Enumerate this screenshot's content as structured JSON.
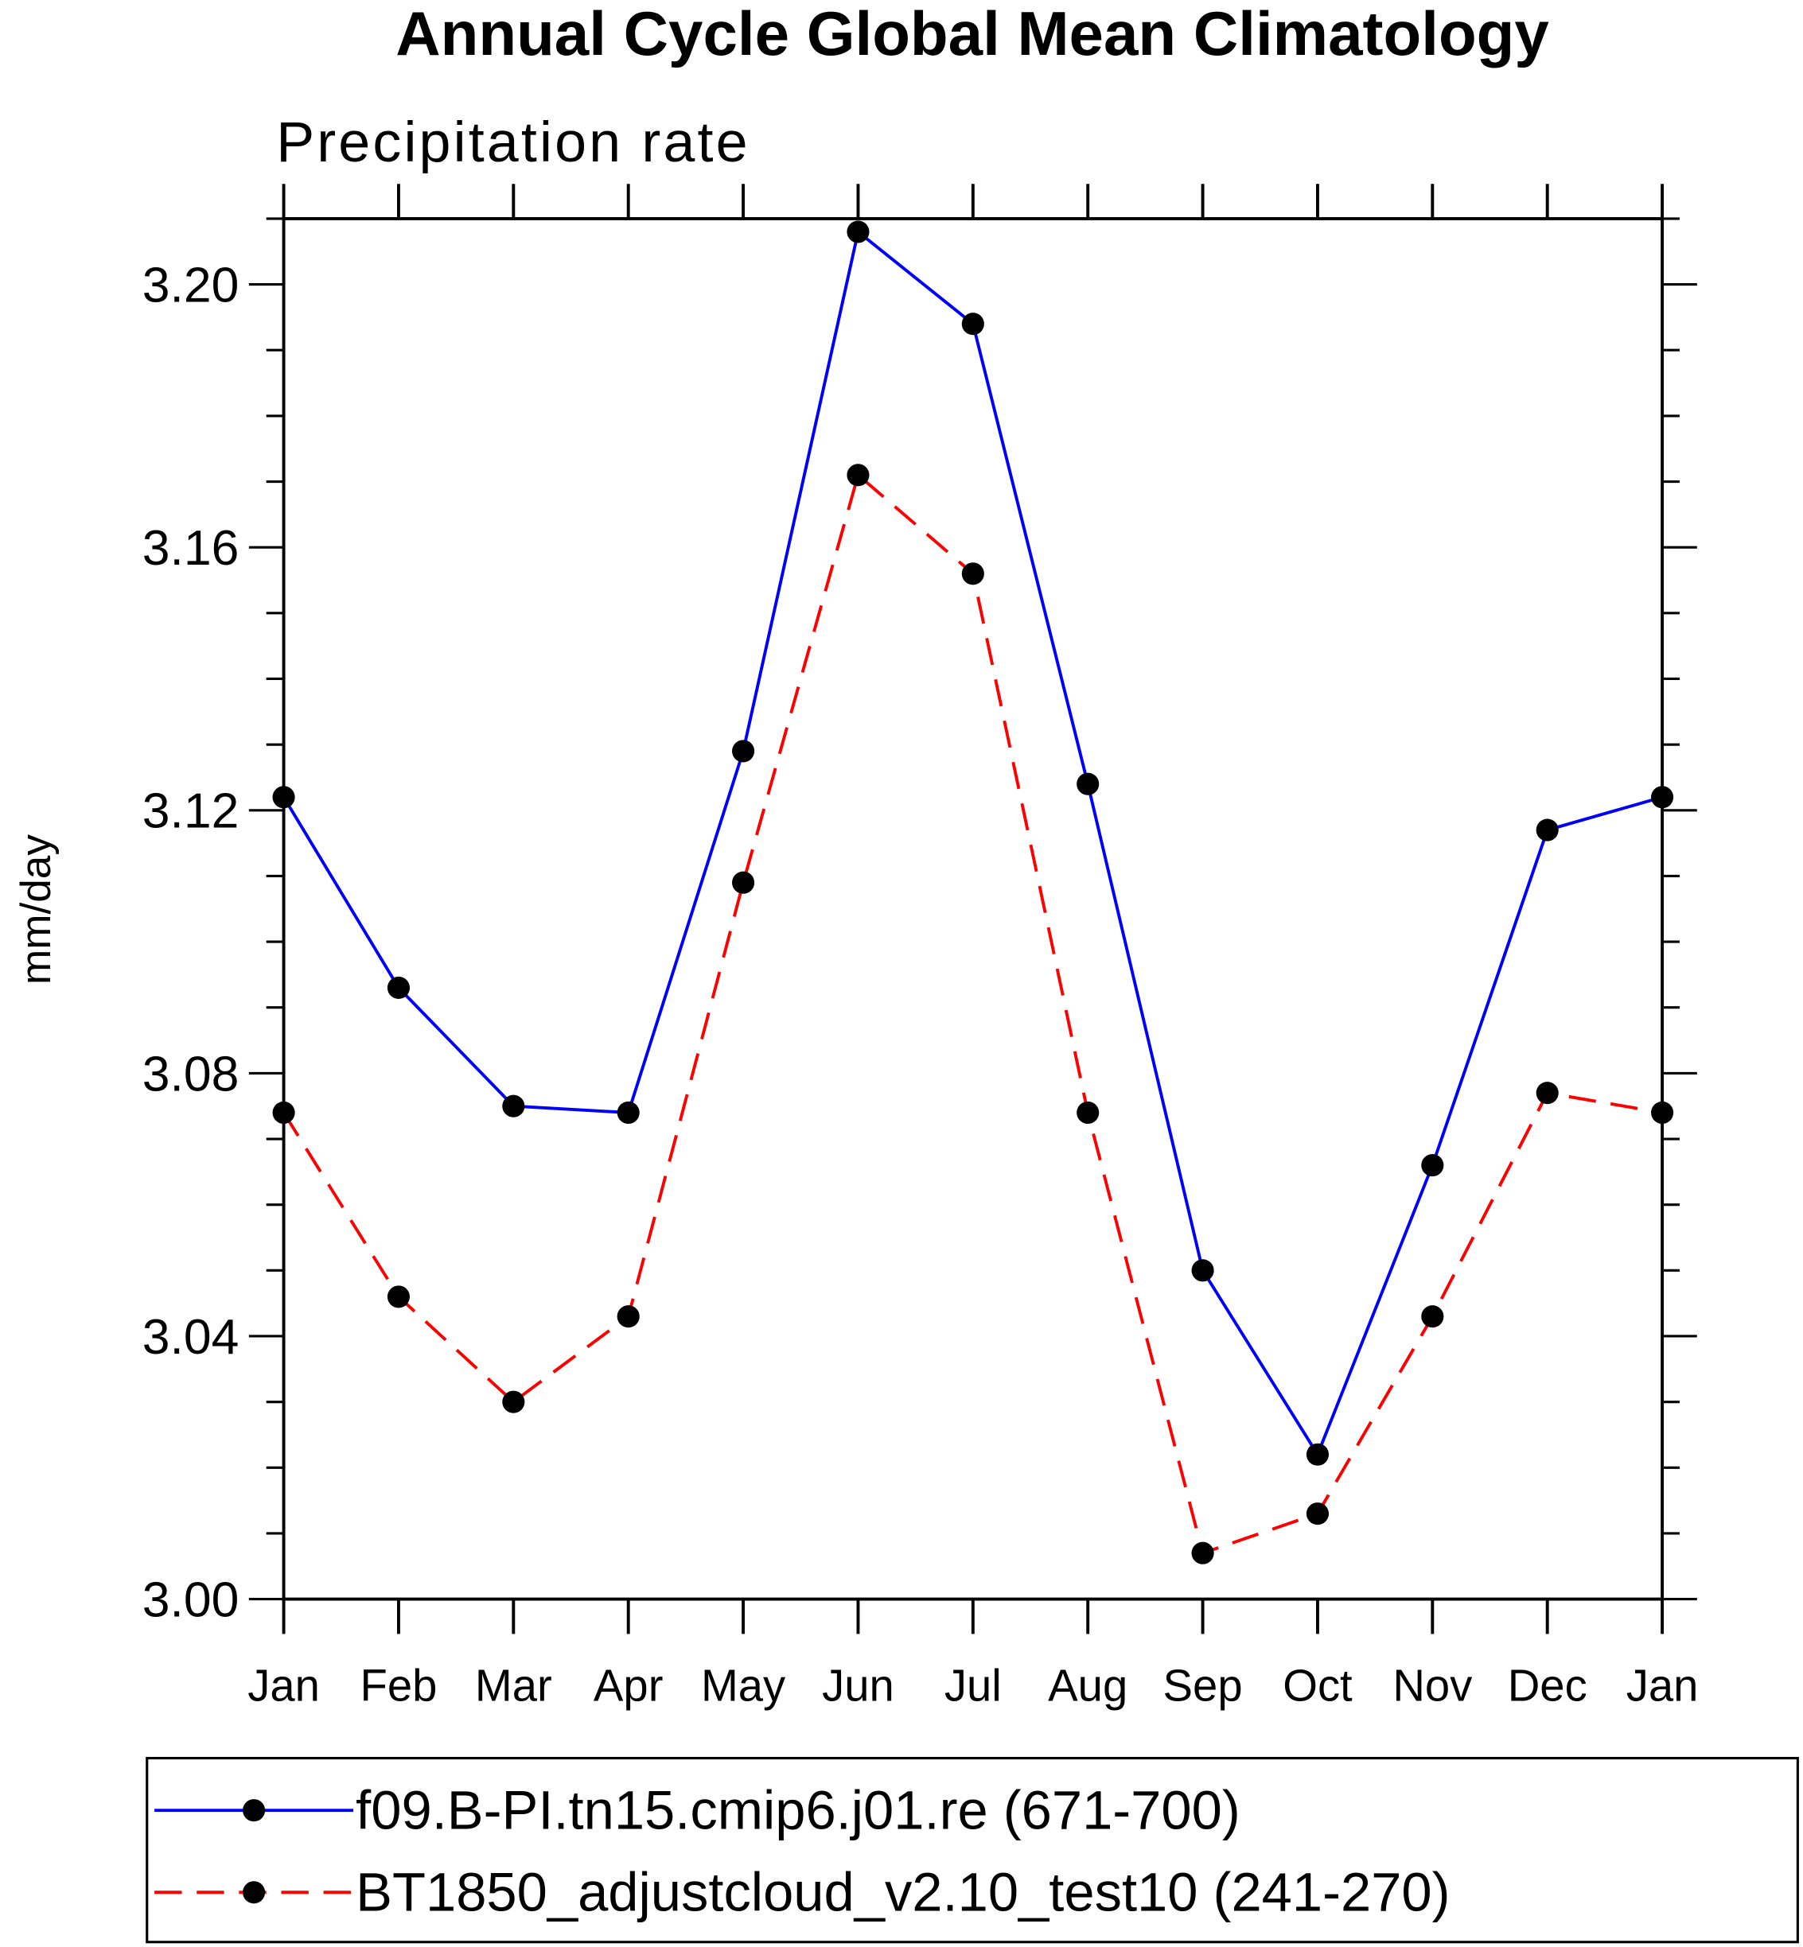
{
  "chart_data": {
    "type": "line",
    "title": "Annual Cycle Global Mean Climatology",
    "subtitle": "Precipitation rate",
    "xlabel": "",
    "ylabel": "mm/day",
    "categories": [
      "Jan",
      "Feb",
      "Mar",
      "Apr",
      "May",
      "Jun",
      "Jul",
      "Aug",
      "Sep",
      "Oct",
      "Nov",
      "Dec",
      "Jan"
    ],
    "ylim": [
      3.0,
      3.21
    ],
    "yticks": [
      "3.00",
      "3.04",
      "3.08",
      "3.12",
      "3.16",
      "3.20"
    ],
    "grid": false,
    "legend_placement": "bottom",
    "series": [
      {
        "name": "f09.B-PI.tn15.cmip6.j01.re (671-700)",
        "color": "#0000ff",
        "dash": "solid",
        "values": [
          3.122,
          3.093,
          3.075,
          3.074,
          3.129,
          3.208,
          3.194,
          3.124,
          3.05,
          3.022,
          3.066,
          3.117,
          3.122
        ]
      },
      {
        "name": "BT1850_adjustcloud_v2.10_test10 (241-270)",
        "color": "#ff0000",
        "dash": "dashed",
        "values": [
          3.074,
          3.046,
          3.03,
          3.043,
          3.109,
          3.171,
          3.156,
          3.074,
          3.007,
          3.013,
          3.043,
          3.077,
          3.074
        ]
      }
    ]
  }
}
